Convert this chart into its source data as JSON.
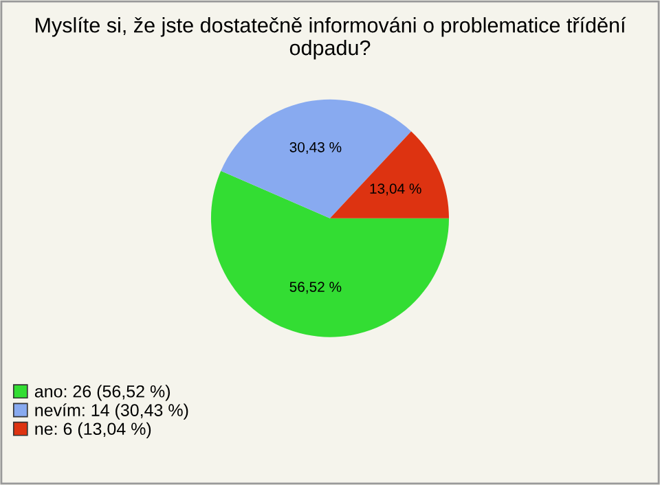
{
  "chart_data": {
    "type": "pie",
    "title": "Myslíte si, že jste dostatečně informováni o problematice třídění odpadu?",
    "categories": [
      "ano: 26 (56,52 %)",
      "nevím: 14 (30,43 %)",
      "ne: 6 (13,04 %)"
    ],
    "values": [
      56.52,
      30.43,
      13.04
    ],
    "value_labels": [
      "56,52 %",
      "30,43 %",
      "13,04 %"
    ],
    "colors": [
      "#33dd33",
      "#88aaf0",
      "#dd3311"
    ],
    "legend": "bottom left"
  }
}
